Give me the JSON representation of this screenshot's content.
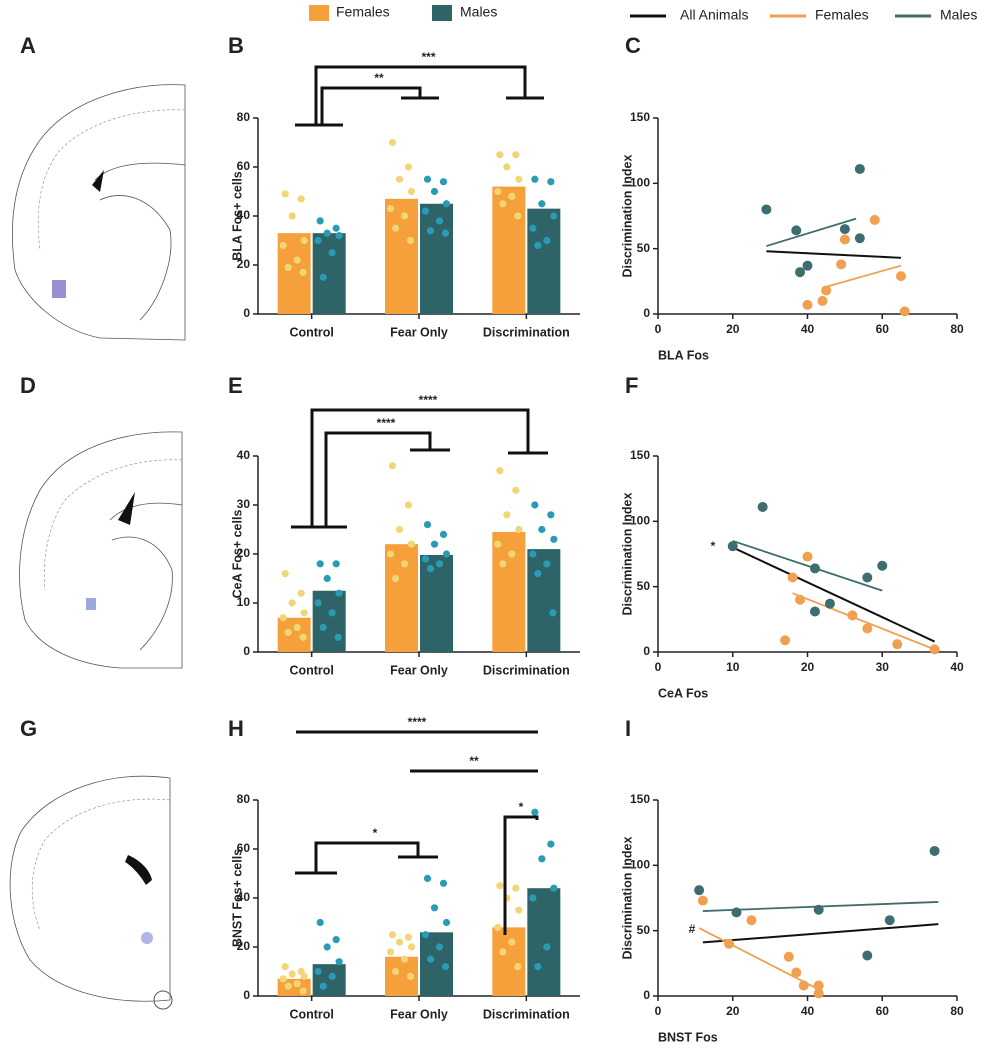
{
  "panels": [
    "A",
    "B",
    "C",
    "D",
    "E",
    "F",
    "G",
    "H",
    "I"
  ],
  "chart_data": [
    {
      "type": "bar",
      "ylabel": "BLA Fos+ cells",
      "categories": [
        "Control",
        "Fear Only",
        "Discrimination"
      ],
      "ylim": [
        0,
        80
      ],
      "yticks": [
        0,
        20,
        40,
        60,
        80
      ],
      "annotations": [
        "**",
        "***"
      ],
      "series": [
        {
          "name": "Females",
          "color": "#f5a03a",
          "point_color": "#f2d675",
          "values": [
            33,
            47,
            52
          ],
          "points": [
            [
              49,
              47,
              40,
              30,
              28,
              22,
              19,
              17
            ],
            [
              70,
              60,
              55,
              50,
              43,
              40,
              35,
              30
            ],
            [
              65,
              65,
              60,
              55,
              50,
              48,
              45,
              40
            ]
          ]
        },
        {
          "name": "Males",
          "color": "#2e6468",
          "point_color": "#2a9bb5",
          "values": [
            33,
            45,
            43
          ],
          "points": [
            [
              38,
              35,
              33,
              32,
              30,
              25,
              15
            ],
            [
              55,
              54,
              50,
              45,
              42,
              38,
              34,
              33
            ],
            [
              55,
              54,
              45,
              40,
              35,
              30,
              28
            ]
          ]
        }
      ]
    },
    {
      "type": "scatter",
      "xlabel": "BLA Fos",
      "ylabel": "Discrimination Index",
      "xlim": [
        0,
        80
      ],
      "xticks": [
        0,
        20,
        40,
        60,
        80
      ],
      "ylim": [
        0,
        150
      ],
      "yticks": [
        0,
        50,
        100,
        150
      ],
      "annotations": [],
      "series": [
        {
          "name": "All Animals",
          "color": "#111111",
          "x": [],
          "y": [],
          "fit": {
            "x": [
              29,
              65
            ],
            "y": [
              48,
              43
            ]
          }
        },
        {
          "name": "Females",
          "color": "#f0a050",
          "x": [
            50,
            58,
            49,
            40,
            44,
            45,
            65,
            66
          ],
          "y": [
            57,
            72,
            38,
            7,
            10,
            18,
            29,
            2
          ],
          "fit": {
            "x": [
              44,
              65
            ],
            "y": [
              20,
              37
            ]
          }
        },
        {
          "name": "Males",
          "color": "#3d6d6f",
          "x": [
            29,
            37,
            38,
            40,
            50,
            54,
            54
          ],
          "y": [
            80,
            64,
            32,
            37,
            65,
            58,
            111
          ],
          "fit": {
            "x": [
              29,
              53
            ],
            "y": [
              52,
              73
            ]
          }
        }
      ]
    },
    {
      "type": "bar",
      "ylabel": "CeA Fos+ cells",
      "categories": [
        "Control",
        "Fear Only",
        "Discrimination"
      ],
      "ylim": [
        0,
        40
      ],
      "yticks": [
        0,
        10,
        20,
        30,
        40
      ],
      "annotations": [
        "****",
        "****"
      ],
      "series": [
        {
          "name": "Females",
          "color": "#f5a03a",
          "point_color": "#f2d675",
          "values": [
            7,
            22,
            24.5
          ],
          "points": [
            [
              16,
              12,
              10,
              8,
              7,
              5,
              4,
              3
            ],
            [
              38,
              30,
              25,
              22,
              20,
              18,
              15
            ],
            [
              37,
              33,
              28,
              25,
              22,
              20,
              18
            ]
          ]
        },
        {
          "name": "Males",
          "color": "#2e6468",
          "point_color": "#2a9bb5",
          "values": [
            12.5,
            19.8,
            21
          ],
          "points": [
            [
              18,
              18,
              15,
              12,
              10,
              8,
              5,
              3
            ],
            [
              26,
              24,
              22,
              20,
              19,
              18,
              17
            ],
            [
              30,
              28,
              25,
              23,
              20,
              18,
              16,
              8
            ]
          ]
        }
      ]
    },
    {
      "type": "scatter",
      "xlabel": "CeA Fos",
      "ylabel": "Discrimination Index",
      "xlim": [
        0,
        40
      ],
      "xticks": [
        0,
        10,
        20,
        30,
        40
      ],
      "ylim": [
        0,
        150
      ],
      "yticks": [
        0,
        50,
        100,
        150
      ],
      "annotations": [
        "*"
      ],
      "series": [
        {
          "name": "All Animals",
          "color": "#111111",
          "x": [],
          "y": [],
          "fit": {
            "x": [
              10,
              37
            ],
            "y": [
              80,
              8
            ]
          }
        },
        {
          "name": "Females",
          "color": "#f0a050",
          "x": [
            17,
            18,
            19,
            20,
            26,
            28,
            32,
            37
          ],
          "y": [
            9,
            57,
            40,
            73,
            28,
            18,
            6,
            2
          ],
          "fit": {
            "x": [
              18,
              37
            ],
            "y": [
              45,
              2
            ]
          }
        },
        {
          "name": "Males",
          "color": "#3d6d6f",
          "x": [
            10,
            14,
            21,
            21,
            23,
            28,
            30
          ],
          "y": [
            81,
            111,
            64,
            31,
            37,
            57,
            66
          ],
          "fit": {
            "x": [
              10,
              30
            ],
            "y": [
              85,
              47
            ]
          }
        }
      ]
    },
    {
      "type": "bar",
      "ylabel": "BNST Fos+ cells",
      "categories": [
        "Control",
        "Fear Only",
        "Discrimination"
      ],
      "ylim": [
        0,
        80
      ],
      "yticks": [
        0,
        20,
        40,
        60,
        80
      ],
      "annotations": [
        "*",
        "*",
        "**",
        "****"
      ],
      "series": [
        {
          "name": "Females",
          "color": "#f5a03a",
          "point_color": "#f2d675",
          "values": [
            7,
            16,
            28
          ],
          "points": [
            [
              12,
              10,
              9,
              8,
              7,
              5,
              4,
              2
            ],
            [
              25,
              24,
              22,
              20,
              18,
              15,
              10,
              8
            ],
            [
              45,
              44,
              40,
              35,
              28,
              22,
              18,
              12
            ]
          ]
        },
        {
          "name": "Males",
          "color": "#2e6468",
          "point_color": "#2a9bb5",
          "values": [
            13,
            26,
            44
          ],
          "points": [
            [
              30,
              23,
              20,
              14,
              10,
              8,
              4
            ],
            [
              48,
              46,
              36,
              30,
              25,
              20,
              15,
              12
            ],
            [
              75,
              62,
              56,
              44,
              40,
              20,
              12
            ]
          ]
        }
      ]
    },
    {
      "type": "scatter",
      "xlabel": "BNST Fos",
      "ylabel": "Discrimination Index",
      "xlim": [
        0,
        80
      ],
      "xticks": [
        0,
        20,
        40,
        60,
        80
      ],
      "ylim": [
        0,
        150
      ],
      "yticks": [
        0,
        50,
        100,
        150
      ],
      "annotations": [
        "#"
      ],
      "series": [
        {
          "name": "All Animals",
          "color": "#111111",
          "x": [],
          "y": [],
          "fit": {
            "x": [
              12,
              75
            ],
            "y": [
              41,
              55
            ]
          }
        },
        {
          "name": "Females",
          "color": "#f0a050",
          "x": [
            12,
            19,
            25,
            35,
            37,
            39,
            43,
            43
          ],
          "y": [
            73,
            40,
            58,
            30,
            18,
            8,
            8,
            2
          ],
          "fit": {
            "x": [
              11,
              43
            ],
            "y": [
              52,
              5
            ]
          }
        },
        {
          "name": "Males",
          "color": "#3d6d6f",
          "x": [
            11,
            21,
            43,
            56,
            62,
            74
          ],
          "y": [
            81,
            64,
            66,
            31,
            58,
            111
          ],
          "fit": {
            "x": [
              12,
              75
            ],
            "y": [
              65,
              72
            ]
          }
        }
      ]
    }
  ]
}
